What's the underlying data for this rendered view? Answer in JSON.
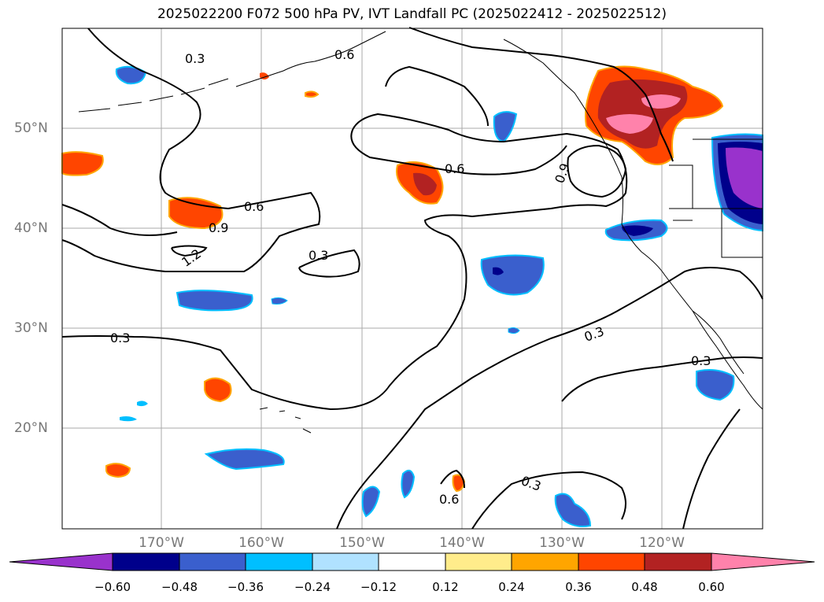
{
  "title": "2025022200 F072 500 hPa PV, IVT Landfall PC (2025022412 - 2025022512)",
  "map": {
    "lat_ticks": [
      "50°N",
      "40°N",
      "30°N",
      "20°N"
    ],
    "lon_ticks": [
      "170°W",
      "160°W",
      "150°W",
      "140°W",
      "130°W",
      "120°W"
    ],
    "contour_labels": [
      "0.3",
      "0.6",
      "0.6",
      "0.6",
      "0.9",
      "0.9",
      "1.2",
      "0.3",
      "0.3",
      "0.3",
      "0.3",
      "0.6",
      "0.3"
    ]
  },
  "colorbar": {
    "ticks": [
      "−0.60",
      "−0.48",
      "−0.36",
      "−0.24",
      "−0.12",
      "0.12",
      "0.24",
      "0.36",
      "0.48",
      "0.60"
    ],
    "colors": [
      "#9932cc",
      "#00008b",
      "#3a5fcd",
      "#00bfff",
      "#b0e2ff",
      "#ffffff",
      "#ffec8b",
      "#ffa500",
      "#ff4500",
      "#b22222",
      "#ff82ab"
    ]
  }
}
